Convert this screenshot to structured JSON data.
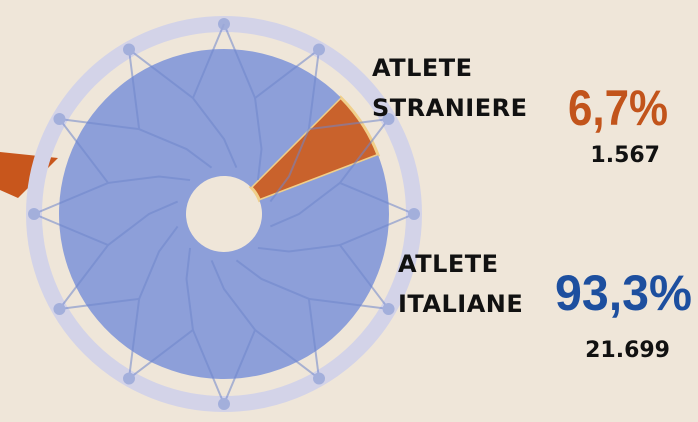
{
  "chart_data": {
    "type": "pie",
    "categories": [
      "ATLETE STRANIERE",
      "ATLETE ITALIANE"
    ],
    "values": [
      6.7,
      93.3
    ],
    "value_labels": [
      "6,7%",
      "93,3%"
    ],
    "counts": [
      "1.567",
      "21.699"
    ],
    "colors": [
      "#c9622c",
      "#8d9fd9"
    ],
    "label_colors": [
      "#c2541b",
      "#1d4f9f"
    ]
  }
}
